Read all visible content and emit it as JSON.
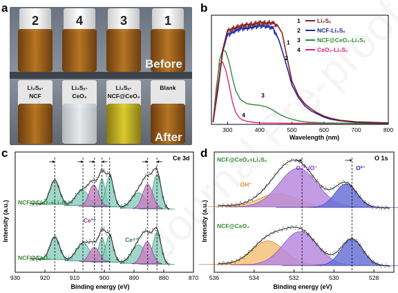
{
  "panels": {
    "a": "a",
    "b": "b",
    "c": "c",
    "d": "d"
  },
  "photo": {
    "vial_numbers": [
      "2",
      "4",
      "3",
      "1"
    ],
    "before_label": "Before",
    "after_label": "After",
    "after_labels": [
      {
        "line1": "Li₂Sₓ-",
        "line2": "NCF"
      },
      {
        "line1": "Li₂Sₓ-",
        "line2": "CeO₂"
      },
      {
        "line1": "Li₂Sₓ-",
        "line2": "NCF@CeO₂"
      },
      {
        "line1": "Blank",
        "line2": ""
      }
    ]
  },
  "colors": {
    "li2sx": "#8b1a1a",
    "ncf": "#1a2aa0",
    "ncfceo2": "#2e8b2e",
    "ceo2": "#e0207a",
    "ce_fill": "#7fcbb8",
    "ce3_fill": "#c77fc0",
    "oh_fill": "#f5c27a",
    "o_lat_fill": "#b98be0",
    "o2_fill": "#6a73d8",
    "label_green": "#2e8b2e",
    "label_orange": "#e08a2a",
    "label_purple": "#8a2be2",
    "label_blue": "#1a2aa0"
  },
  "watermark": "Journal Pre-proof",
  "chart_data": [
    {
      "id": "b",
      "type": "line",
      "xlabel": "Wavelength (nm)",
      "ylabel": "",
      "xlim": [
        250,
        800
      ],
      "xticks": [
        300,
        400,
        500,
        600,
        700,
        800
      ],
      "legend_position": "top-right",
      "series": [
        {
          "num": "1",
          "name": "Li₂Sₓ",
          "color": "#8b1a1a",
          "x": [
            255,
            270,
            285,
            300,
            320,
            340,
            360,
            380,
            400,
            420,
            440,
            455,
            470,
            480,
            500,
            520,
            540,
            560,
            580,
            600,
            620,
            650,
            700,
            750,
            800
          ],
          "y": [
            0.02,
            0.35,
            0.72,
            0.9,
            0.93,
            0.95,
            0.96,
            0.97,
            0.98,
            0.98,
            0.98,
            0.95,
            0.88,
            0.72,
            0.42,
            0.28,
            0.2,
            0.15,
            0.11,
            0.08,
            0.06,
            0.04,
            0.025,
            0.02,
            0.015
          ]
        },
        {
          "num": "2",
          "name": "NCF-Li₂Sₓ",
          "color": "#1a2aa0",
          "x": [
            255,
            270,
            285,
            300,
            320,
            340,
            360,
            380,
            400,
            420,
            440,
            460,
            475,
            490,
            500,
            520,
            540,
            560,
            580,
            600,
            620,
            650,
            700,
            750,
            800
          ],
          "y": [
            0.02,
            0.33,
            0.7,
            0.86,
            0.9,
            0.92,
            0.93,
            0.94,
            0.95,
            0.95,
            0.93,
            0.82,
            0.66,
            0.5,
            0.38,
            0.26,
            0.18,
            0.13,
            0.1,
            0.07,
            0.05,
            0.035,
            0.02,
            0.015,
            0.01
          ]
        },
        {
          "num": "3",
          "name": "NCF@CeO₂-Li₂Sₓ",
          "color": "#2e8b2e",
          "x": [
            255,
            265,
            275,
            285,
            295,
            305,
            315,
            325,
            340,
            360,
            380,
            400,
            420,
            440,
            460,
            480,
            500,
            520,
            540,
            560,
            600,
            650,
            700,
            750,
            800
          ],
          "y": [
            0.02,
            0.3,
            0.62,
            0.72,
            0.7,
            0.6,
            0.45,
            0.33,
            0.24,
            0.2,
            0.19,
            0.185,
            0.17,
            0.14,
            0.1,
            0.07,
            0.05,
            0.035,
            0.025,
            0.02,
            0.015,
            0.012,
            0.01,
            0.01,
            0.01
          ]
        },
        {
          "num": "4",
          "name": "CeO₂-Li₂Sₓ",
          "color": "#e0207a",
          "x": [
            255,
            265,
            275,
            285,
            295,
            305,
            315,
            325,
            335,
            345,
            360,
            380,
            400,
            450,
            500,
            550,
            600,
            700,
            800
          ],
          "y": [
            0.02,
            0.35,
            0.58,
            0.6,
            0.52,
            0.38,
            0.22,
            0.12,
            0.07,
            0.045,
            0.03,
            0.02,
            0.015,
            0.012,
            0.01,
            0.01,
            0.01,
            0.01,
            0.01
          ]
        }
      ]
    },
    {
      "id": "c",
      "type": "line",
      "title": "Ce 3d",
      "xlabel": "Binding energy (eV)",
      "ylabel": "Intensity (a.u.)",
      "xlim": [
        930,
        870
      ],
      "xticks": [
        930,
        920,
        910,
        900,
        890,
        880,
        870
      ],
      "reference_lines": [
        916.7,
        907.2,
        903.3,
        900.8,
        898.2,
        885.4,
        882.3
      ],
      "annotations": {
        "ce3": "Ce³⁺",
        "ce4": "Ce⁴⁺"
      },
      "spectra": [
        {
          "label": "NCF@CeO₂+Li₂Sₓ",
          "position": "top",
          "ce4_peaks": [
            {
              "c": 916.7,
              "a": 0.55,
              "w": 1.6
            },
            {
              "c": 907.4,
              "a": 0.35,
              "w": 2.2
            },
            {
              "c": 900.8,
              "a": 0.62,
              "w": 1.1
            },
            {
              "c": 898.2,
              "a": 0.7,
              "w": 1.3
            },
            {
              "c": 888.5,
              "a": 0.35,
              "w": 2.3
            },
            {
              "c": 882.3,
              "a": 0.78,
              "w": 1.4
            }
          ],
          "ce3_peaks": [
            {
              "c": 903.6,
              "a": 0.48,
              "w": 1.6
            },
            {
              "c": 885.4,
              "a": 0.55,
              "w": 1.7
            }
          ]
        },
        {
          "label": "NCF@CeO₂",
          "position": "bottom",
          "ce4_peaks": [
            {
              "c": 916.7,
              "a": 0.52,
              "w": 1.6
            },
            {
              "c": 907.2,
              "a": 0.4,
              "w": 2.2
            },
            {
              "c": 900.8,
              "a": 0.55,
              "w": 1.1
            },
            {
              "c": 898.3,
              "a": 0.6,
              "w": 1.3
            },
            {
              "c": 888.5,
              "a": 0.42,
              "w": 2.3
            },
            {
              "c": 882.3,
              "a": 0.72,
              "w": 1.4
            }
          ],
          "ce3_peaks": [
            {
              "c": 903.4,
              "a": 0.32,
              "w": 1.6
            },
            {
              "c": 885.6,
              "a": 0.5,
              "w": 1.7
            }
          ]
        }
      ]
    },
    {
      "id": "d",
      "type": "line",
      "title": "O 1s",
      "xlabel": "Binding energy (eV)",
      "ylabel": "Intensity (a.u.)",
      "xlim": [
        536,
        527
      ],
      "xticks": [
        536,
        534,
        532,
        530,
        528
      ],
      "reference_lines": [
        531.6,
        529.1
      ],
      "annotations": {
        "oh": "OH⁻",
        "o22": "O₂²⁻/O⁻",
        "o2": "O²⁻"
      },
      "spectra": [
        {
          "label": "NCF@CeO₂+Li₂Sₓ",
          "position": "top",
          "peaks": [
            {
              "name": "OH",
              "c": 532.8,
              "a": 0.3,
              "w": 0.95
            },
            {
              "name": "O22",
              "c": 531.8,
              "a": 0.9,
              "w": 0.95
            },
            {
              "name": "O2",
              "c": 529.4,
              "a": 0.55,
              "w": 0.55
            }
          ]
        },
        {
          "label": "NCF@CeO₂",
          "position": "bottom",
          "peaks": [
            {
              "name": "OH",
              "c": 533.3,
              "a": 0.55,
              "w": 0.8
            },
            {
              "name": "O22",
              "c": 531.7,
              "a": 0.78,
              "w": 0.85
            },
            {
              "name": "O2",
              "c": 529.1,
              "a": 0.62,
              "w": 0.55
            }
          ]
        }
      ]
    }
  ]
}
